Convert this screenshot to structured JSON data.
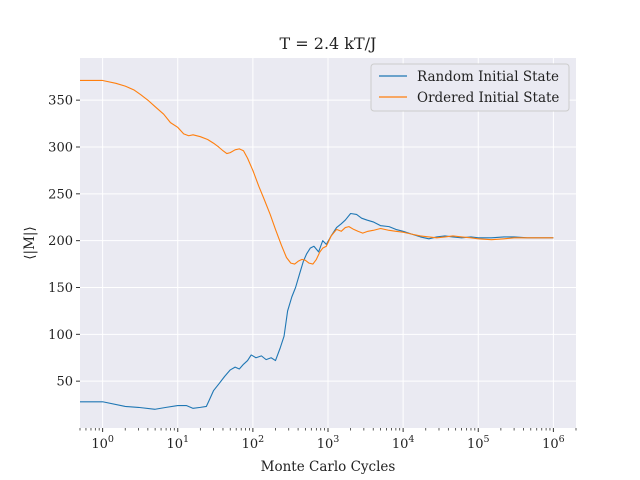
{
  "chart_data": {
    "type": "line",
    "title": "T = 2.4 kT/J",
    "xlabel": "Monte Carlo Cycles",
    "ylabel": "⟨|M|⟩",
    "x_scale": "log",
    "xlim": [
      0.5,
      2000000
    ],
    "ylim": [
      0,
      395
    ],
    "x_ticks": [
      1,
      10,
      100,
      1000,
      10000,
      100000,
      1000000
    ],
    "x_tick_labels": [
      {
        "base": "10",
        "exp": "0"
      },
      {
        "base": "10",
        "exp": "1"
      },
      {
        "base": "10",
        "exp": "2"
      },
      {
        "base": "10",
        "exp": "3"
      },
      {
        "base": "10",
        "exp": "4"
      },
      {
        "base": "10",
        "exp": "5"
      },
      {
        "base": "10",
        "exp": "6"
      }
    ],
    "y_ticks": [
      50,
      100,
      150,
      200,
      250,
      300,
      350
    ],
    "grid": true,
    "background": "#eaeaf2",
    "legend_position": "top-right",
    "series": [
      {
        "name": "Random Initial State",
        "color": "#1f77b4",
        "points": [
          [
            0.5,
            28
          ],
          [
            1,
            28
          ],
          [
            2,
            23
          ],
          [
            3,
            22
          ],
          [
            5,
            20
          ],
          [
            7,
            22
          ],
          [
            10,
            24
          ],
          [
            13,
            24
          ],
          [
            16,
            21
          ],
          [
            20,
            22
          ],
          [
            24,
            23
          ],
          [
            26,
            29
          ],
          [
            30,
            40
          ],
          [
            36,
            48
          ],
          [
            42,
            55
          ],
          [
            50,
            62
          ],
          [
            58,
            65
          ],
          [
            66,
            63
          ],
          [
            75,
            68
          ],
          [
            85,
            72
          ],
          [
            95,
            78
          ],
          [
            110,
            75
          ],
          [
            130,
            77
          ],
          [
            150,
            73
          ],
          [
            175,
            75
          ],
          [
            200,
            72
          ],
          [
            230,
            85
          ],
          [
            260,
            98
          ],
          [
            290,
            125
          ],
          [
            330,
            140
          ],
          [
            370,
            150
          ],
          [
            420,
            165
          ],
          [
            470,
            178
          ],
          [
            520,
            186
          ],
          [
            580,
            192
          ],
          [
            650,
            194
          ],
          [
            750,
            188
          ],
          [
            850,
            200
          ],
          [
            950,
            196
          ],
          [
            1100,
            205
          ],
          [
            1300,
            214
          ],
          [
            1500,
            218
          ],
          [
            1700,
            222
          ],
          [
            2000,
            229
          ],
          [
            2400,
            228
          ],
          [
            2800,
            224
          ],
          [
            3300,
            222
          ],
          [
            4000,
            220
          ],
          [
            5000,
            216
          ],
          [
            6500,
            215
          ],
          [
            8000,
            212
          ],
          [
            10000,
            210
          ],
          [
            13000,
            207
          ],
          [
            17000,
            204
          ],
          [
            22000,
            202
          ],
          [
            28000,
            204
          ],
          [
            36000,
            205
          ],
          [
            46000,
            204
          ],
          [
            60000,
            203
          ],
          [
            80000,
            204
          ],
          [
            100000,
            203
          ],
          [
            150000,
            203
          ],
          [
            220000,
            204
          ],
          [
            300000,
            204
          ],
          [
            450000,
            203
          ],
          [
            650000,
            203
          ],
          [
            1000000,
            203
          ]
        ]
      },
      {
        "name": "Ordered Initial State",
        "color": "#ff7f0e",
        "points": [
          [
            0.5,
            371
          ],
          [
            1,
            371
          ],
          [
            1.5,
            368
          ],
          [
            2,
            365
          ],
          [
            2.6,
            361
          ],
          [
            3.2,
            356
          ],
          [
            4,
            350
          ],
          [
            5,
            343
          ],
          [
            6.5,
            335
          ],
          [
            8,
            326
          ],
          [
            10,
            321
          ],
          [
            12,
            314
          ],
          [
            14,
            312
          ],
          [
            16,
            313
          ],
          [
            20,
            311
          ],
          [
            25,
            308
          ],
          [
            30,
            304
          ],
          [
            35,
            300
          ],
          [
            40,
            296
          ],
          [
            45,
            293
          ],
          [
            50,
            294
          ],
          [
            58,
            297
          ],
          [
            66,
            298
          ],
          [
            75,
            296
          ],
          [
            85,
            288
          ],
          [
            100,
            275
          ],
          [
            120,
            258
          ],
          [
            140,
            245
          ],
          [
            170,
            228
          ],
          [
            200,
            212
          ],
          [
            240,
            195
          ],
          [
            280,
            182
          ],
          [
            320,
            176
          ],
          [
            360,
            175
          ],
          [
            400,
            178
          ],
          [
            450,
            180
          ],
          [
            500,
            179
          ],
          [
            560,
            176
          ],
          [
            630,
            175
          ],
          [
            700,
            180
          ],
          [
            780,
            188
          ],
          [
            850,
            192
          ],
          [
            950,
            194
          ],
          [
            1100,
            205
          ],
          [
            1300,
            212
          ],
          [
            1500,
            210
          ],
          [
            1700,
            214
          ],
          [
            1900,
            215
          ],
          [
            2200,
            212
          ],
          [
            2500,
            210
          ],
          [
            2900,
            208
          ],
          [
            3400,
            210
          ],
          [
            4000,
            211
          ],
          [
            5000,
            213
          ],
          [
            6500,
            211
          ],
          [
            8000,
            210
          ],
          [
            10000,
            209
          ],
          [
            13000,
            207
          ],
          [
            17000,
            205
          ],
          [
            22000,
            204
          ],
          [
            28000,
            203
          ],
          [
            36000,
            204
          ],
          [
            46000,
            205
          ],
          [
            60000,
            204
          ],
          [
            80000,
            203
          ],
          [
            100000,
            202
          ],
          [
            150000,
            201
          ],
          [
            220000,
            202
          ],
          [
            300000,
            203
          ],
          [
            450000,
            203
          ],
          [
            650000,
            203
          ],
          [
            1000000,
            203
          ]
        ]
      }
    ]
  }
}
